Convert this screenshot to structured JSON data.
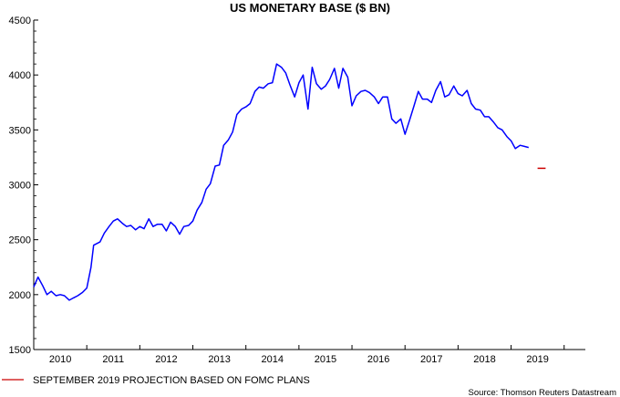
{
  "chart_data": {
    "type": "line",
    "title": "US MONETARY BASE ($ BN)",
    "xlabel": "",
    "ylabel": "",
    "ylim": [
      1500,
      4500
    ],
    "yticks": [
      1500,
      2000,
      2500,
      3000,
      3500,
      4000,
      4500
    ],
    "xticks": [
      "2010",
      "2011",
      "2012",
      "2013",
      "2014",
      "2015",
      "2016",
      "2017",
      "2018",
      "2019"
    ],
    "xlim": [
      2009.5,
      2019.9
    ],
    "grid": false,
    "legend_position": "bottom-left",
    "series": [
      {
        "name": "",
        "color": "#0000ff",
        "points": [
          [
            2009.5,
            2070
          ],
          [
            2009.58,
            2160
          ],
          [
            2009.67,
            2080
          ],
          [
            2009.75,
            2000
          ],
          [
            2009.83,
            2030
          ],
          [
            2009.92,
            1990
          ],
          [
            2010.0,
            2000
          ],
          [
            2010.08,
            1990
          ],
          [
            2010.17,
            1950
          ],
          [
            2010.25,
            1970
          ],
          [
            2010.33,
            1990
          ],
          [
            2010.42,
            2020
          ],
          [
            2010.5,
            2060
          ],
          [
            2010.58,
            2250
          ],
          [
            2010.63,
            2450
          ],
          [
            2010.75,
            2480
          ],
          [
            2010.83,
            2560
          ],
          [
            2010.92,
            2620
          ],
          [
            2011.0,
            2670
          ],
          [
            2011.08,
            2690
          ],
          [
            2011.17,
            2650
          ],
          [
            2011.25,
            2620
          ],
          [
            2011.33,
            2630
          ],
          [
            2011.42,
            2590
          ],
          [
            2011.5,
            2620
          ],
          [
            2011.58,
            2600
          ],
          [
            2011.67,
            2690
          ],
          [
            2011.75,
            2620
          ],
          [
            2011.83,
            2640
          ],
          [
            2011.92,
            2640
          ],
          [
            2012.0,
            2580
          ],
          [
            2012.08,
            2660
          ],
          [
            2012.17,
            2620
          ],
          [
            2012.25,
            2550
          ],
          [
            2012.33,
            2620
          ],
          [
            2012.42,
            2630
          ],
          [
            2012.5,
            2670
          ],
          [
            2012.58,
            2770
          ],
          [
            2012.67,
            2840
          ],
          [
            2012.75,
            2960
          ],
          [
            2012.83,
            3010
          ],
          [
            2012.92,
            3170
          ],
          [
            2013.0,
            3180
          ],
          [
            2013.08,
            3360
          ],
          [
            2013.17,
            3410
          ],
          [
            2013.25,
            3480
          ],
          [
            2013.33,
            3640
          ],
          [
            2013.42,
            3690
          ],
          [
            2013.5,
            3710
          ],
          [
            2013.58,
            3740
          ],
          [
            2013.67,
            3850
          ],
          [
            2013.75,
            3890
          ],
          [
            2013.83,
            3880
          ],
          [
            2013.92,
            3920
          ],
          [
            2014.0,
            3930
          ],
          [
            2014.08,
            4100
          ],
          [
            2014.17,
            4070
          ],
          [
            2014.25,
            4020
          ],
          [
            2014.33,
            3910
          ],
          [
            2014.42,
            3800
          ],
          [
            2014.5,
            3930
          ],
          [
            2014.58,
            4000
          ],
          [
            2014.67,
            3690
          ],
          [
            2014.75,
            4070
          ],
          [
            2014.83,
            3920
          ],
          [
            2014.92,
            3870
          ],
          [
            2015.0,
            3900
          ],
          [
            2015.08,
            3960
          ],
          [
            2015.17,
            4060
          ],
          [
            2015.25,
            3880
          ],
          [
            2015.33,
            4060
          ],
          [
            2015.42,
            3980
          ],
          [
            2015.5,
            3720
          ],
          [
            2015.58,
            3810
          ],
          [
            2015.67,
            3850
          ],
          [
            2015.75,
            3860
          ],
          [
            2015.83,
            3840
          ],
          [
            2015.92,
            3800
          ],
          [
            2016.0,
            3740
          ],
          [
            2016.08,
            3800
          ],
          [
            2016.17,
            3800
          ],
          [
            2016.25,
            3600
          ],
          [
            2016.33,
            3560
          ],
          [
            2016.42,
            3600
          ],
          [
            2016.5,
            3460
          ],
          [
            2016.58,
            3580
          ],
          [
            2016.67,
            3720
          ],
          [
            2016.75,
            3850
          ],
          [
            2016.83,
            3780
          ],
          [
            2016.92,
            3780
          ],
          [
            2017.0,
            3750
          ],
          [
            2017.08,
            3860
          ],
          [
            2017.17,
            3940
          ],
          [
            2017.25,
            3800
          ],
          [
            2017.33,
            3820
          ],
          [
            2017.42,
            3900
          ],
          [
            2017.5,
            3830
          ],
          [
            2017.58,
            3810
          ],
          [
            2017.67,
            3860
          ],
          [
            2017.75,
            3740
          ],
          [
            2017.83,
            3690
          ],
          [
            2017.92,
            3680
          ],
          [
            2018.0,
            3620
          ],
          [
            2018.08,
            3620
          ],
          [
            2018.17,
            3570
          ],
          [
            2018.25,
            3520
          ],
          [
            2018.33,
            3500
          ],
          [
            2018.42,
            3440
          ],
          [
            2018.5,
            3400
          ],
          [
            2018.58,
            3330
          ],
          [
            2018.67,
            3360
          ],
          [
            2018.75,
            3350
          ],
          [
            2018.83,
            3340
          ]
        ]
      },
      {
        "name": "SEPTEMBER 2019 PROJECTION BASED ON FOMC PLANS",
        "color": "#cc0000",
        "points": [
          [
            2019.0,
            3150
          ],
          [
            2019.15,
            3150
          ]
        ]
      }
    ],
    "source": "Source: Thomson Reuters Datastream"
  }
}
